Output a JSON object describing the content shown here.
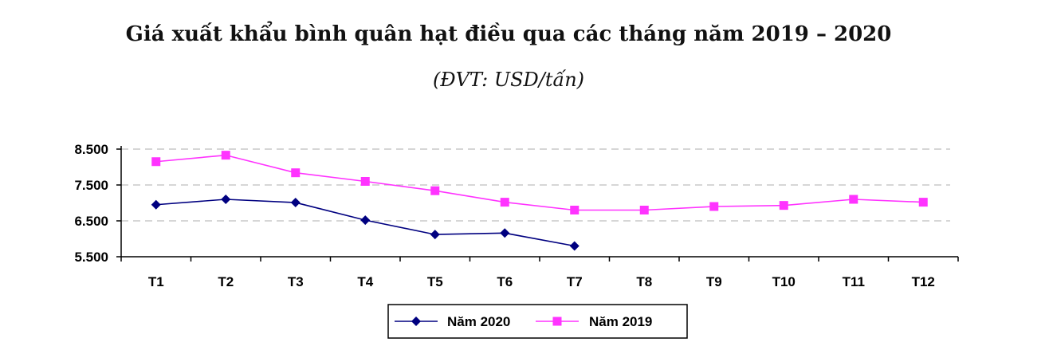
{
  "chart_data": {
    "type": "line",
    "title": "Giá xuất khẩu bình quân hạt điều qua các tháng năm 2019 – 2020",
    "subtitle": "(ĐVT: USD/tấn)",
    "categories": [
      "T1",
      "T2",
      "T3",
      "T4",
      "T5",
      "T6",
      "T7",
      "T8",
      "T9",
      "T10",
      "T11",
      "T12"
    ],
    "ylim": [
      5500,
      8500
    ],
    "yticks": [
      5500,
      6500,
      7500,
      8500
    ],
    "ytick_labels": [
      "5.500",
      "6.500",
      "7.500",
      "8.500"
    ],
    "grid": true,
    "legend_position": "bottom",
    "series": [
      {
        "name": "Năm 2020",
        "color": "#000080",
        "marker": "diamond",
        "values": [
          6950,
          7100,
          7010,
          6520,
          6120,
          6160,
          5800,
          null,
          null,
          null,
          null,
          null
        ]
      },
      {
        "name": "Năm 2019",
        "color": "#ff33ff",
        "marker": "square",
        "values": [
          8150,
          8330,
          7840,
          7600,
          7340,
          7020,
          6800,
          6800,
          6900,
          6930,
          7100,
          7020
        ]
      }
    ]
  }
}
